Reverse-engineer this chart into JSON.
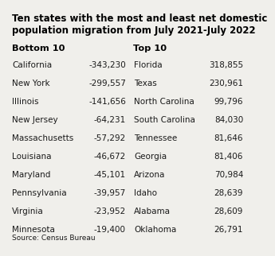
{
  "title_line1": "Ten states with the most and least net domestic",
  "title_line2": "population migration from July 2021-July 2022",
  "title_fontsize": 8.5,
  "source": "Source: Census Bureau",
  "bottom_header": "Bottom 10",
  "top_header": "Top 10",
  "bottom_states": [
    "California",
    "New York",
    "Illinois",
    "New Jersey",
    "Massachusetts",
    "Louisiana",
    "Maryland",
    "Pennsylvania",
    "Virginia",
    "Minnesota"
  ],
  "bottom_values": [
    "-343,230",
    "-299,557",
    "-141,656",
    "-64,231",
    "-57,292",
    "-46,672",
    "-45,101",
    "-39,957",
    "-23,952",
    "-19,400"
  ],
  "top_states": [
    "Florida",
    "Texas",
    "North Carolina",
    "South Carolina",
    "Tennessee",
    "Georgia",
    "Arizona",
    "Idaho",
    "Alabama",
    "Oklahoma"
  ],
  "top_values": [
    "318,855",
    "230,961",
    "99,796",
    "84,030",
    "81,646",
    "81,406",
    "70,984",
    "28,639",
    "28,609",
    "26,791"
  ],
  "bg_color": "#f0efeb",
  "text_color": "#1a1a1a",
  "header_color": "#000000",
  "font_size": 7.5,
  "header_font_size": 8.2,
  "source_font_size": 6.5
}
